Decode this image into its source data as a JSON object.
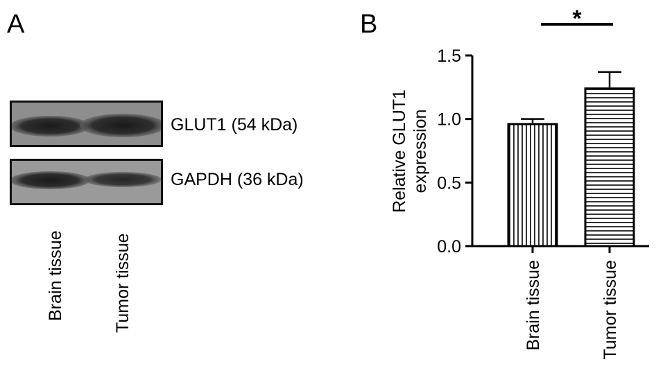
{
  "panel_a": {
    "label": "A",
    "bands": [
      "GLUT1 (54 kDa)",
      "GAPDH (36 kDa)"
    ],
    "lanes": [
      "Brain tissue",
      "Tumor tissue"
    ]
  },
  "panel_b": {
    "label": "B"
  },
  "chart_data": {
    "type": "bar",
    "categories": [
      "Brain tissue",
      "Tumor tissue"
    ],
    "values": [
      0.96,
      1.24
    ],
    "errors": [
      0.04,
      0.13
    ],
    "ylabel_lines": [
      "Relative GLUT1",
      "expression"
    ],
    "ylim": [
      0,
      1.5
    ],
    "yticks": [
      "0.0",
      "0.5",
      "1.0",
      "1.5"
    ],
    "xlabel": "",
    "significance": "*",
    "patterns": [
      "vertical-stripes",
      "horizontal-stripes"
    ],
    "grid": false,
    "legend": "none"
  }
}
